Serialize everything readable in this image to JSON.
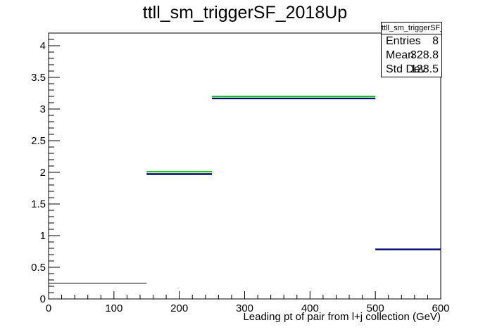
{
  "chart_data": {
    "type": "step-histogram",
    "title": "ttll_sm_triggerSF_2018Up",
    "xlabel": "Leading pt of pair from l+j collection (GeV)",
    "ylabel": "",
    "xlim": [
      0,
      600
    ],
    "ylim": [
      0,
      4.2
    ],
    "x_ticks": [
      0,
      100,
      200,
      300,
      400,
      500,
      600
    ],
    "y_ticks": [
      0,
      0.5,
      1,
      1.5,
      2,
      2.5,
      3,
      3.5,
      4
    ],
    "grid": false,
    "series": [
      {
        "color": "#000000",
        "bins": [
          {
            "x0": 0,
            "x1": 150,
            "y": 0.25
          },
          {
            "x0": 150,
            "x1": 250,
            "y": 1.98
          },
          {
            "x0": 250,
            "x1": 500,
            "y": 3.16
          },
          {
            "x0": 500,
            "x1": 600,
            "y": 0.79
          }
        ]
      },
      {
        "color": "#00008b",
        "bins": [
          {
            "x0": 150,
            "x1": 250,
            "y": 1.97
          },
          {
            "x0": 250,
            "x1": 500,
            "y": 3.17
          },
          {
            "x0": 500,
            "x1": 600,
            "y": 0.78
          }
        ]
      },
      {
        "color": "#00cc00",
        "bins": [
          {
            "x0": 150,
            "x1": 250,
            "y": 2.01
          },
          {
            "x0": 250,
            "x1": 500,
            "y": 3.2
          }
        ]
      }
    ],
    "stats": {
      "title": "ttll_sm_triggerSF_2018Up",
      "rows": [
        {
          "key": "Entries",
          "value": "8"
        },
        {
          "key": "Mean",
          "value": "328.8"
        },
        {
          "key": "Std Dev",
          "value": "123.5"
        }
      ]
    }
  }
}
